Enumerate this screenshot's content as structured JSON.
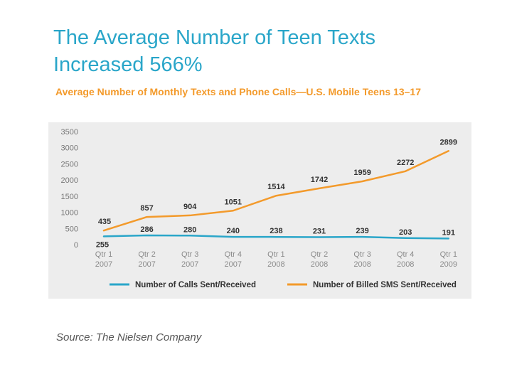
{
  "page": {
    "title_line1": "The Average Number of Teen Texts",
    "title_line2": "Increased 566%",
    "source": "Source: The Nielsen Company"
  },
  "colors": {
    "title": "#2aa6c9",
    "subtitle": "#f39a2b",
    "calls_line": "#2aa6c9",
    "sms_line": "#f39a2b",
    "panel_bg": "#ededed"
  },
  "chart_data": {
    "type": "line",
    "title": "Average Number of Monthly Texts and Phone Calls—U.S. Mobile Teens 13–17",
    "xlabel": "",
    "ylabel": "",
    "ylim": [
      0,
      3500
    ],
    "yticks": [
      "0",
      "500",
      "1000",
      "1500",
      "2000",
      "2500",
      "3000",
      "3500"
    ],
    "grid": false,
    "legend_position": "bottom",
    "categories": [
      [
        "Qtr 1",
        "2007"
      ],
      [
        "Qtr 2",
        "2007"
      ],
      [
        "Qtr 3",
        "2007"
      ],
      [
        "Qtr 4",
        "2007"
      ],
      [
        "Qtr 1",
        "2008"
      ],
      [
        "Qtr 2",
        "2008"
      ],
      [
        "Qtr 3",
        "2008"
      ],
      [
        "Qtr 4",
        "2008"
      ],
      [
        "Qtr 1",
        "2009"
      ]
    ],
    "series": [
      {
        "name": "Number of Calls Sent/Received",
        "color": "#2aa6c9",
        "values": [
          255,
          286,
          280,
          240,
          238,
          231,
          239,
          203,
          191
        ]
      },
      {
        "name": "Number of Billed SMS Sent/Received",
        "color": "#f39a2b",
        "values": [
          435,
          857,
          904,
          1051,
          1514,
          1742,
          1959,
          2272,
          2899
        ]
      }
    ]
  }
}
